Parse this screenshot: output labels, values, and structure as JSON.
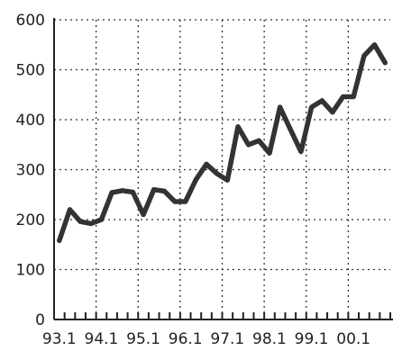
{
  "chart_data": {
    "type": "line",
    "title": "",
    "xlabel": "",
    "ylabel": "",
    "ylim": [
      0,
      600
    ],
    "yticks": [
      0,
      100,
      200,
      300,
      400,
      500,
      600
    ],
    "xticks": [
      "93.1",
      "94.1",
      "95.1",
      "96.1",
      "97.1",
      "98.1",
      "99.1",
      "00.1"
    ],
    "quarter_ticks": true,
    "grid": true,
    "legend": "none",
    "line_color": "#333333",
    "series": [
      {
        "values": [
          158,
          220,
          196,
          192,
          200,
          254,
          258,
          255,
          210,
          260,
          257,
          236,
          236,
          280,
          311,
          292,
          279,
          386,
          350,
          358,
          333,
          425,
          380,
          336,
          425,
          438,
          415,
          446,
          446,
          528,
          550,
          514
        ]
      }
    ]
  }
}
